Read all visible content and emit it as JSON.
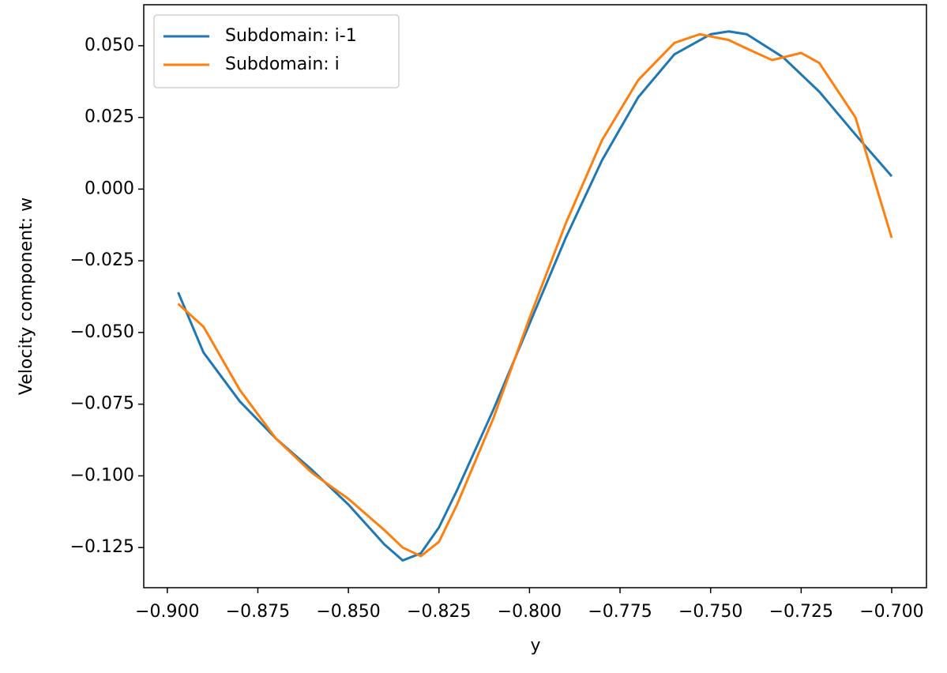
{
  "chart_data": {
    "type": "line",
    "x_label": "y",
    "y_label": "Velocity component: w",
    "xlim": [
      -0.9065,
      -0.6904
    ],
    "ylim": [
      -0.139,
      0.0643
    ],
    "xticks": [
      {
        "value": -0.9,
        "label": "−0.900"
      },
      {
        "value": -0.875,
        "label": "−0.875"
      },
      {
        "value": -0.85,
        "label": "−0.850"
      },
      {
        "value": -0.825,
        "label": "−0.825"
      },
      {
        "value": -0.8,
        "label": "−0.800"
      },
      {
        "value": -0.775,
        "label": "−0.775"
      },
      {
        "value": -0.75,
        "label": "−0.750"
      },
      {
        "value": -0.725,
        "label": "−0.725"
      },
      {
        "value": -0.7,
        "label": "−0.700"
      }
    ],
    "yticks": [
      {
        "value": -0.125,
        "label": "−0.125"
      },
      {
        "value": -0.1,
        "label": "−0.100"
      },
      {
        "value": -0.075,
        "label": "−0.075"
      },
      {
        "value": -0.05,
        "label": "−0.050"
      },
      {
        "value": -0.025,
        "label": "−0.025"
      },
      {
        "value": 0,
        "label": "0.000"
      },
      {
        "value": 0.025,
        "label": "0.025"
      },
      {
        "value": 0.05,
        "label": "0.050"
      }
    ],
    "legend": "upper left",
    "series": [
      {
        "name": "Subdomain: i-1",
        "color": "#1f77b4",
        "x": [
          -0.897,
          -0.89,
          -0.88,
          -0.87,
          -0.86,
          -0.85,
          -0.84,
          -0.835,
          -0.83,
          -0.825,
          -0.82,
          -0.81,
          -0.8,
          -0.79,
          -0.78,
          -0.77,
          -0.76,
          -0.75,
          -0.745,
          -0.74,
          -0.73,
          -0.72,
          -0.71,
          -0.7
        ],
        "values": [
          -0.036,
          -0.057,
          -0.074,
          -0.087,
          -0.098,
          -0.11,
          -0.124,
          -0.1295,
          -0.127,
          -0.118,
          -0.105,
          -0.077,
          -0.047,
          -0.017,
          0.01,
          0.032,
          0.047,
          0.054,
          0.055,
          0.054,
          0.046,
          0.034,
          0.019,
          0.0045
        ]
      },
      {
        "name": "Subdomain: i",
        "color": "#ff7f0e",
        "x": [
          -0.897,
          -0.89,
          -0.88,
          -0.87,
          -0.86,
          -0.85,
          -0.84,
          -0.835,
          -0.83,
          -0.825,
          -0.82,
          -0.81,
          -0.8,
          -0.79,
          -0.78,
          -0.77,
          -0.76,
          -0.753,
          -0.745,
          -0.74,
          -0.733,
          -0.725,
          -0.72,
          -0.71,
          -0.7
        ],
        "values": [
          -0.04,
          -0.048,
          -0.07,
          -0.087,
          -0.099,
          -0.108,
          -0.119,
          -0.125,
          -0.128,
          -0.123,
          -0.11,
          -0.08,
          -0.045,
          -0.012,
          0.017,
          0.038,
          0.051,
          0.054,
          0.052,
          0.049,
          0.045,
          0.0475,
          0.044,
          0.025,
          -0.017
        ]
      }
    ]
  }
}
